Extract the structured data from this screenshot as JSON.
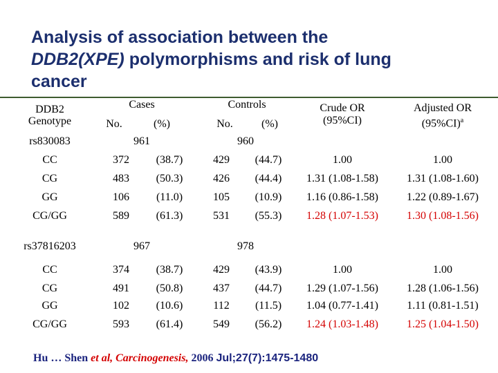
{
  "title": {
    "line_1": "Analysis of association between the",
    "line_2_italic": "DDB2(XPE)",
    "line_2": "polymorphisms and risk of lung",
    "line_3": "cancer"
  },
  "header": {
    "genotype": [
      "DDB2",
      "Genotype"
    ],
    "cases": "Cases",
    "cases_no": "No.",
    "cases_pct": "(%)",
    "controls": "Controls",
    "controls_no": "No.",
    "controls_pct": "(%)",
    "crude_or": [
      "Crude OR",
      "(95%CI)"
    ],
    "adjusted_or": [
      "Adjusted OR",
      "(95%CI)"
    ],
    "adjusted_note": "a"
  },
  "sections": [
    {
      "snp": "rs830083",
      "cases_total": 961,
      "controls_total": 960,
      "rows": [
        {
          "genotype": "CC",
          "cases_no": 372,
          "cases_pct": "(38.7)",
          "controls_no": 429,
          "controls_pct": "(44.7)",
          "crude_or": "1.00",
          "adjusted_or": "1.00",
          "or_color": "#000000"
        },
        {
          "genotype": "CG",
          "cases_no": 483,
          "cases_pct": "(50.3)",
          "controls_no": 426,
          "controls_pct": "(44.4)",
          "crude_or": "1.31 (1.08-1.58)",
          "adjusted_or": "1.31 (1.08-1.60)",
          "or_color": "#000000"
        },
        {
          "genotype": "GG",
          "cases_no": 106,
          "cases_pct": "(11.0)",
          "controls_no": 105,
          "controls_pct": "(10.9)",
          "crude_or": "1.16 (0.86-1.58)",
          "adjusted_or": "1.22 (0.89-1.67)",
          "or_color": "#000000"
        },
        {
          "genotype": "CG/GG",
          "cases_no": 589,
          "cases_pct": "(61.3)",
          "controls_no": 531,
          "controls_pct": "(55.3)",
          "crude_or": "1.28 (1.07-1.53)",
          "adjusted_or": "1.30 (1.08-1.56)",
          "or_color": "#d40000"
        }
      ]
    },
    {
      "snp": "rs37816203",
      "cases_total": 967,
      "controls_total": 978,
      "rows": [
        {
          "genotype": "CC",
          "cases_no": 374,
          "cases_pct": "(38.7)",
          "controls_no": 429,
          "controls_pct": "(43.9)",
          "crude_or": "1.00",
          "adjusted_or": "1.00",
          "or_color": "#000000"
        },
        {
          "genotype": "CG",
          "cases_no": 491,
          "cases_pct": "(50.8)",
          "controls_no": 437,
          "controls_pct": "(44.7)",
          "crude_or": "1.29 (1.07-1.56)",
          "adjusted_or": "1.28 (1.06-1.56)",
          "or_color": "#000000"
        },
        {
          "genotype": "GG",
          "cases_no": 102,
          "cases_pct": "(10.6)",
          "controls_no": 112,
          "controls_pct": "(11.5)",
          "crude_or": "1.04 (0.77-1.41)",
          "adjusted_or": "1.11 (0.81-1.51)",
          "or_color": "#000000"
        },
        {
          "genotype": "CG/GG",
          "cases_no": 593,
          "cases_pct": "(61.4)",
          "controls_no": 549,
          "controls_pct": "(56.2)",
          "crude_or": "1.24 (1.03-1.48)",
          "adjusted_or": "1.25 (1.04-1.50)",
          "or_color": "#d40000"
        }
      ]
    }
  ],
  "citation": {
    "authors": "Hu … Shen",
    "journal": "et al, Carcinogenesis,",
    "year": "2006",
    "ref": "Jul;27(7):1475-1480"
  }
}
